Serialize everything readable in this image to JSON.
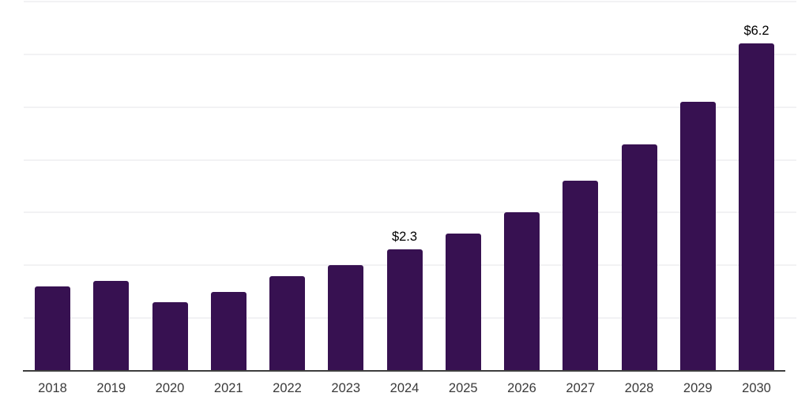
{
  "page": {
    "background_color": "#ffffff"
  },
  "chart_data": {
    "type": "bar",
    "title": "",
    "xlabel": "",
    "ylabel": "",
    "categories": [
      "2018",
      "2019",
      "2020",
      "2021",
      "2022",
      "2023",
      "2024",
      "2025",
      "2026",
      "2027",
      "2028",
      "2029",
      "2030"
    ],
    "values": [
      1.6,
      1.7,
      1.3,
      1.5,
      1.8,
      2.0,
      2.3,
      2.6,
      3.0,
      3.6,
      4.3,
      5.1,
      6.2
    ],
    "data_labels": {
      "2024": "$2.3",
      "2030": "$6.2"
    },
    "label_prefix": "$",
    "ylim": [
      0,
      7
    ],
    "gridline_step": 1,
    "grid": true,
    "legend": false,
    "y_axis_labels_visible": false,
    "bar_color": "#371151",
    "axis_line_color": "#3e3e3e",
    "gridline_color": "#f2f2f4",
    "tick_label_color": "#3a3a3a",
    "data_label_color": "#000000"
  }
}
